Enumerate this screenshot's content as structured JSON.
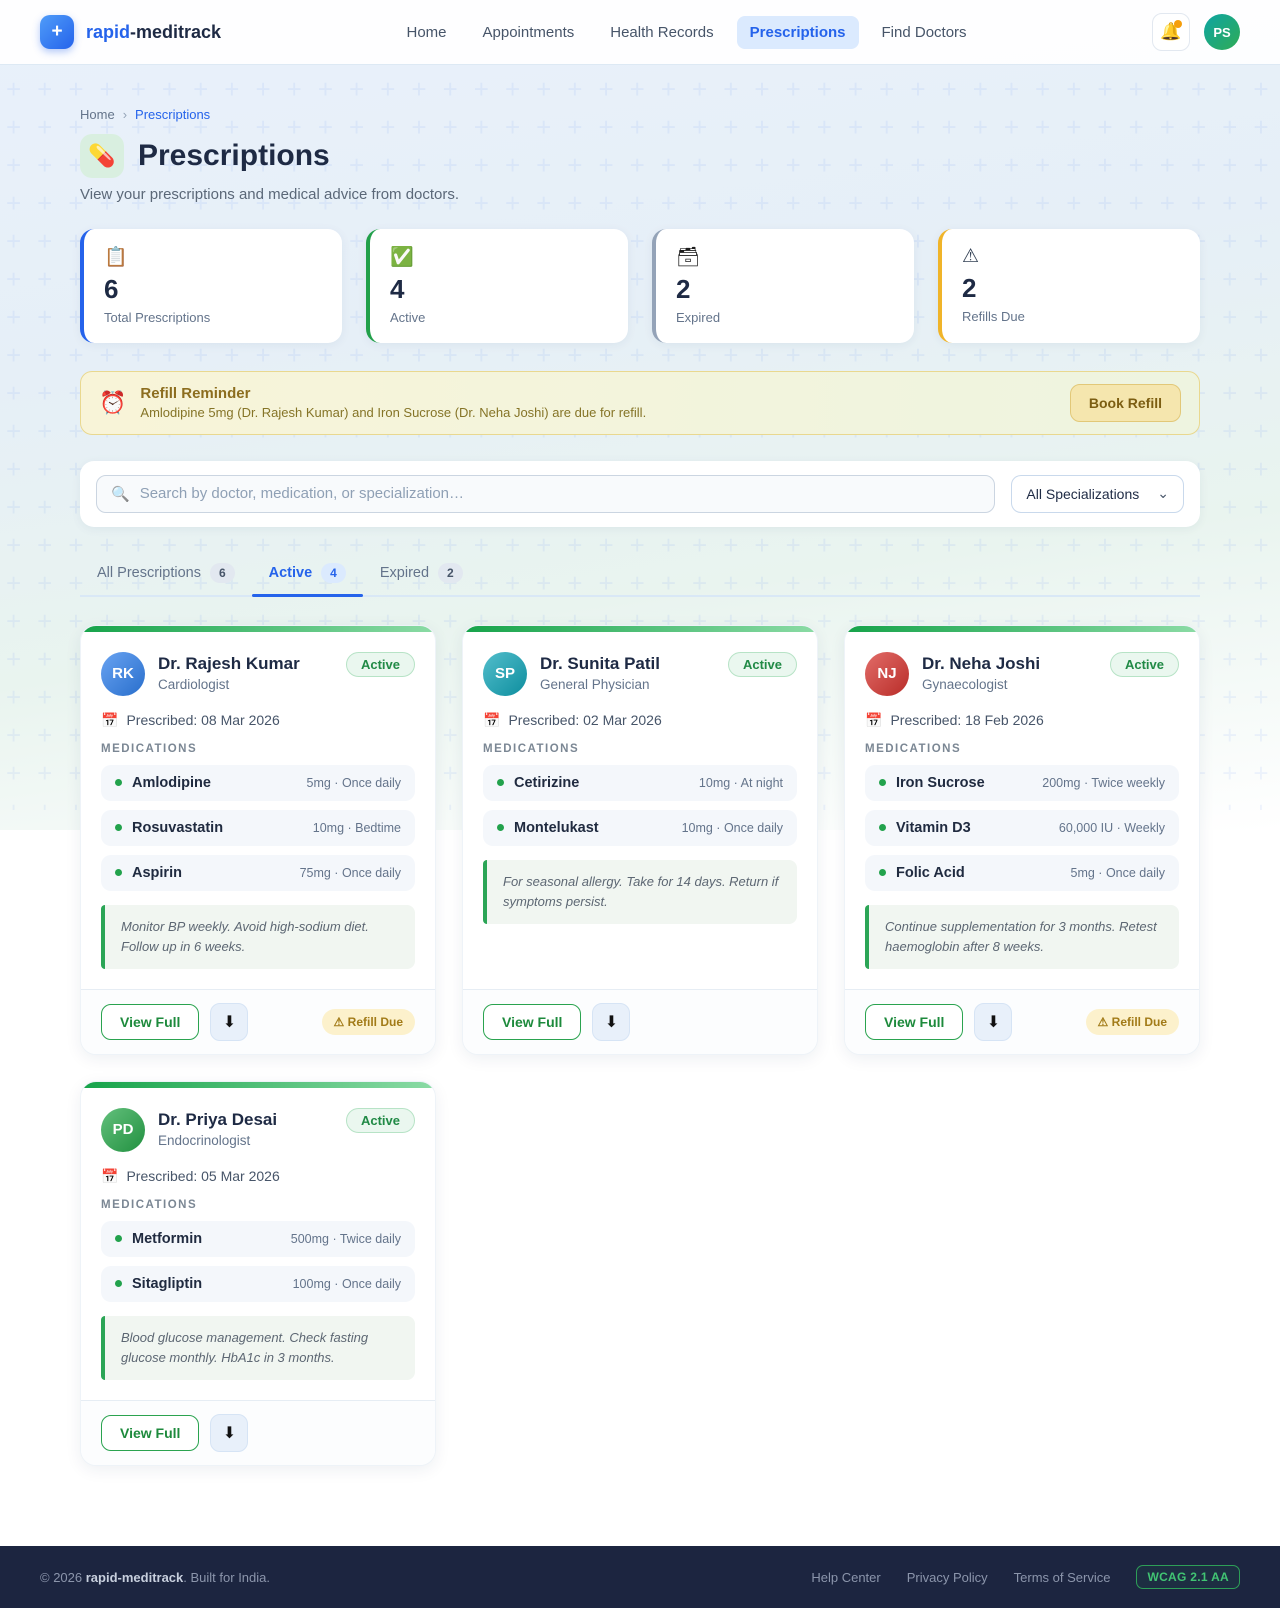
{
  "header": {
    "brand": {
      "logo_plus": "+",
      "name_accent": "rapid",
      "name_rest": "-meditrack"
    },
    "nav": [
      {
        "label": "Home"
      },
      {
        "label": "Appointments"
      },
      {
        "label": "Health Records"
      },
      {
        "label": "Prescriptions",
        "active": true
      },
      {
        "label": "Find Doctors"
      }
    ],
    "bell_icon": "🔔",
    "avatar_initials": "PS"
  },
  "breadcrumb": {
    "home": "Home",
    "sep": "›",
    "current": "Prescriptions"
  },
  "page": {
    "icon": "💊",
    "title": "Prescriptions",
    "subtitle": "View your prescriptions and medical advice from doctors."
  },
  "stats": [
    {
      "icon": "📋",
      "icon_name": "clipboard-icon",
      "value": "6",
      "label": "Total Prescriptions",
      "accent": "#2563eb"
    },
    {
      "icon": "✅",
      "icon_name": "check-icon",
      "value": "4",
      "label": "Active",
      "accent": "#22a04a"
    },
    {
      "icon": "🗃",
      "icon_name": "archive-box-icon",
      "value": "2",
      "label": "Expired",
      "accent": "#94a3b8",
      "mono": true
    },
    {
      "icon": "⚠︎",
      "icon_name": "warning-triangle-icon",
      "value": "2",
      "label": "Refills Due",
      "accent": "#f0b429"
    }
  ],
  "reminder": {
    "icon": "⏰",
    "title": "Refill Reminder",
    "message": "Amlodipine 5mg (Dr. Rajesh Kumar) and Iron Sucrose (Dr. Neha Joshi) are due for refill.",
    "button": "Book Refill"
  },
  "search": {
    "icon": "🔍",
    "placeholder": "Search by doctor, medication, or specialization…",
    "filter_value": "All Specializations",
    "chevron": "⌄"
  },
  "tabs": [
    {
      "label": "All Prescriptions",
      "count": "6"
    },
    {
      "label": "Active",
      "count": "4",
      "active": true
    },
    {
      "label": "Expired",
      "count": "2"
    }
  ],
  "card_labels": {
    "medications_header": "MEDICATIONS",
    "calendar_icon": "📅",
    "view_full": "View Full",
    "download_icon": "⬇︎",
    "refill_warning_icon": "⚠︎"
  },
  "cards": [
    {
      "initials": "RK",
      "avatar_color": "#2f80ed",
      "doctor": "Dr. Rajesh Kumar",
      "specialty": "Cardiologist",
      "status": "Active",
      "prescribed": "Prescribed: 08 Mar 2026",
      "medications": [
        {
          "name": "Amlodipine",
          "dose": "5mg · Once daily"
        },
        {
          "name": "Rosuvastatin",
          "dose": "10mg · Bedtime"
        },
        {
          "name": "Aspirin",
          "dose": "75mg · Once daily"
        }
      ],
      "advice": "Monitor BP weekly. Avoid high-sodium diet. Follow up in 6 weeks.",
      "refill_badge": "Refill Due"
    },
    {
      "initials": "SP",
      "avatar_color": "#10a5b8",
      "doctor": "Dr. Sunita Patil",
      "specialty": "General Physician",
      "status": "Active",
      "prescribed": "Prescribed: 02 Mar 2026",
      "medications": [
        {
          "name": "Cetirizine",
          "dose": "10mg · At night"
        },
        {
          "name": "Montelukast",
          "dose": "10mg · Once daily"
        }
      ],
      "advice": "For seasonal allergy. Take for 14 days. Return if symptoms persist.",
      "refill_badge": null
    },
    {
      "initials": "NJ",
      "avatar_color": "#d7342f",
      "doctor": "Dr. Neha Joshi",
      "specialty": "Gynaecologist",
      "status": "Active",
      "prescribed": "Prescribed: 18 Feb 2026",
      "medications": [
        {
          "name": "Iron Sucrose",
          "dose": "200mg · Twice weekly"
        },
        {
          "name": "Vitamin D3",
          "dose": "60,000 IU · Weekly"
        },
        {
          "name": "Folic Acid",
          "dose": "5mg · Once daily"
        }
      ],
      "advice": "Continue supplementation for 3 months. Retest haemoglobin after 8 weeks.",
      "refill_badge": "Refill Due"
    },
    {
      "initials": "PD",
      "avatar_color": "#27a84a",
      "doctor": "Dr. Priya Desai",
      "specialty": "Endocrinologist",
      "status": "Active",
      "prescribed": "Prescribed: 05 Mar 2026",
      "medications": [
        {
          "name": "Metformin",
          "dose": "500mg · Twice daily"
        },
        {
          "name": "Sitagliptin",
          "dose": "100mg · Once daily"
        }
      ],
      "advice": "Blood glucose management. Check fasting glucose monthly. HbA1c in 3 months.",
      "refill_badge": null
    }
  ],
  "footer": {
    "copyright_prefix": "© 2026 ",
    "brand": "rapid-meditrack",
    "copyright_suffix": ". Built for India.",
    "links": [
      "Help Center",
      "Privacy Policy",
      "Terms of Service"
    ],
    "badge": "WCAG 2.1 AA"
  }
}
